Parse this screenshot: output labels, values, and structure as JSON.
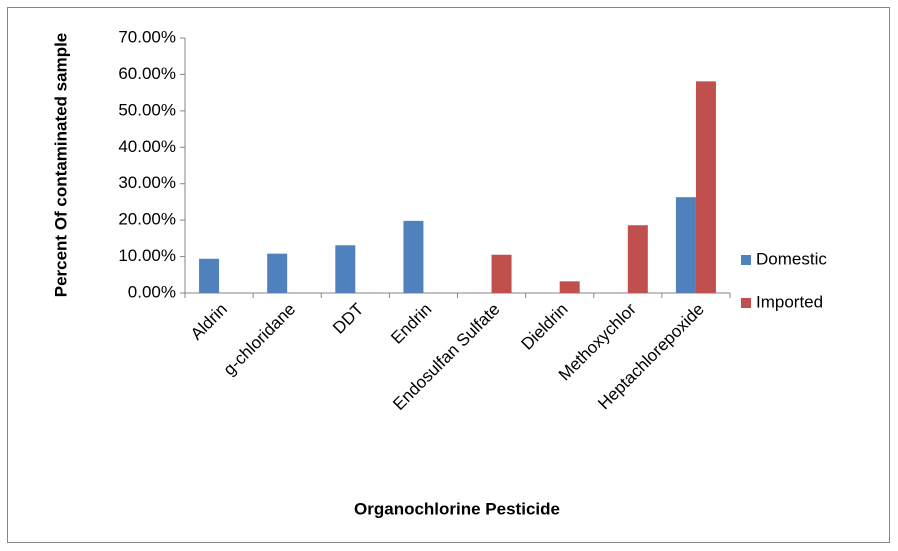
{
  "chart_data": {
    "type": "bar",
    "xlabel": "Organochlorine Pesticide",
    "ylabel": "Percent Of contaminated sample",
    "categories": [
      "Aldrin",
      "g-chloridane",
      "DDT",
      "Endrin",
      "Endosulfan Sulfate",
      "Dieldrin",
      "Methoxychlor",
      "Heptachlorepoxide"
    ],
    "series": [
      {
        "name": "Domestic",
        "color": "#4f81bd",
        "values": [
          9.4,
          10.8,
          13.1,
          19.8,
          null,
          null,
          null,
          26.3
        ]
      },
      {
        "name": "Imported",
        "color": "#c0504d",
        "values": [
          null,
          null,
          null,
          null,
          10.5,
          3.2,
          18.6,
          58.1
        ]
      }
    ],
    "ylim": [
      0,
      70
    ],
    "yticks": [
      {
        "value": 0,
        "label": "0.00%"
      },
      {
        "value": 10,
        "label": "10.00%"
      },
      {
        "value": 20,
        "label": "20.00%"
      },
      {
        "value": 30,
        "label": "30.00%"
      },
      {
        "value": 40,
        "label": "40.00%"
      },
      {
        "value": 50,
        "label": "50.00%"
      },
      {
        "value": 60,
        "label": "60.00%"
      },
      {
        "value": 70,
        "label": "70.00%"
      }
    ],
    "grid": false,
    "legend": "right"
  }
}
